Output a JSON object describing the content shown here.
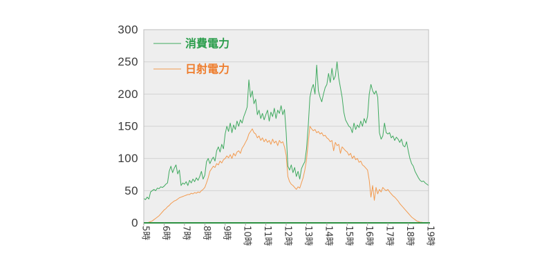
{
  "chart_data": {
    "type": "line",
    "xlim": [
      "5:00",
      "19:00"
    ],
    "ylim": [
      0,
      300
    ],
    "grid": true,
    "legend": "top-left",
    "y_ticks": [
      0,
      50,
      100,
      150,
      200,
      250,
      300
    ],
    "x_ticks": [
      {
        "at": "5:00",
        "label": "5時"
      },
      {
        "at": "6:00",
        "label": "6時"
      },
      {
        "at": "7:00",
        "label": "7時"
      },
      {
        "at": "8:00",
        "label": "8時"
      },
      {
        "at": "9:00",
        "label": "9時"
      },
      {
        "at": "10:00",
        "label": "10時"
      },
      {
        "at": "11:00",
        "label": "11時"
      },
      {
        "at": "12:00",
        "label": "12時"
      },
      {
        "at": "13:00",
        "label": "13時"
      },
      {
        "at": "14:00",
        "label": "14時"
      },
      {
        "at": "15:00",
        "label": "15時"
      },
      {
        "at": "16:00",
        "label": "16時"
      },
      {
        "at": "17:00",
        "label": "17時"
      },
      {
        "at": "18:00",
        "label": "18時"
      },
      {
        "at": "19:00",
        "label": "19時"
      }
    ],
    "x": [
      "5:00",
      "5:05",
      "5:10",
      "5:15",
      "5:20",
      "5:25",
      "5:30",
      "5:35",
      "5:40",
      "5:45",
      "5:50",
      "5:55",
      "6:00",
      "6:05",
      "6:10",
      "6:15",
      "6:20",
      "6:25",
      "6:30",
      "6:35",
      "6:40",
      "6:45",
      "6:50",
      "6:55",
      "7:00",
      "7:05",
      "7:10",
      "7:15",
      "7:20",
      "7:25",
      "7:30",
      "7:35",
      "7:40",
      "7:45",
      "7:50",
      "7:55",
      "8:00",
      "8:05",
      "8:10",
      "8:15",
      "8:20",
      "8:25",
      "8:30",
      "8:35",
      "8:40",
      "8:45",
      "8:50",
      "8:55",
      "9:00",
      "9:05",
      "9:10",
      "9:15",
      "9:20",
      "9:25",
      "9:30",
      "9:35",
      "9:40",
      "9:45",
      "9:50",
      "9:55",
      "10:00",
      "10:05",
      "10:10",
      "10:15",
      "10:20",
      "10:25",
      "10:30",
      "10:35",
      "10:40",
      "10:45",
      "10:50",
      "10:55",
      "11:00",
      "11:05",
      "11:10",
      "11:15",
      "11:20",
      "11:25",
      "11:30",
      "11:35",
      "11:40",
      "11:45",
      "11:50",
      "11:55",
      "12:00",
      "12:05",
      "12:10",
      "12:15",
      "12:20",
      "12:25",
      "12:30",
      "12:35",
      "12:40",
      "12:45",
      "12:50",
      "12:55",
      "13:00",
      "13:05",
      "13:10",
      "13:15",
      "13:20",
      "13:25",
      "13:30",
      "13:35",
      "13:40",
      "13:45",
      "13:50",
      "13:55",
      "14:00",
      "14:05",
      "14:10",
      "14:15",
      "14:20",
      "14:25",
      "14:30",
      "14:35",
      "14:40",
      "14:45",
      "14:50",
      "14:55",
      "15:00",
      "15:05",
      "15:10",
      "15:15",
      "15:20",
      "15:25",
      "15:30",
      "15:35",
      "15:40",
      "15:45",
      "15:50",
      "15:55",
      "16:00",
      "16:05",
      "16:10",
      "16:15",
      "16:20",
      "16:25",
      "16:30",
      "16:35",
      "16:40",
      "16:45",
      "16:50",
      "16:55",
      "17:00",
      "17:05",
      "17:10",
      "17:15",
      "17:20",
      "17:25",
      "17:30",
      "17:35",
      "17:40",
      "17:45",
      "17:50",
      "17:55",
      "18:00",
      "18:05",
      "18:10",
      "18:15",
      "18:20",
      "18:25",
      "18:30",
      "18:35",
      "18:40",
      "18:45",
      "18:50",
      "18:55",
      "19:00"
    ],
    "series": [
      {
        "name": "消費電力",
        "color": "#3ea95e",
        "label_color": "#2a9d4b",
        "values": [
          38,
          36,
          40,
          37,
          48,
          50,
          52,
          50,
          54,
          53,
          56,
          55,
          57,
          60,
          62,
          80,
          88,
          78,
          85,
          90,
          76,
          82,
          58,
          62,
          60,
          64,
          58,
          66,
          62,
          68,
          64,
          70,
          66,
          72,
          80,
          68,
          74,
          95,
          100,
          92,
          98,
          102,
          96,
          112,
          118,
          110,
          122,
          115,
          138,
          150,
          142,
          155,
          140,
          152,
          145,
          158,
          150,
          160,
          155,
          165,
          172,
          180,
          222,
          195,
          205,
          185,
          192,
          168,
          175,
          162,
          170,
          160,
          168,
          175,
          158,
          172,
          165,
          178,
          162,
          175,
          170,
          182,
          168,
          176,
          140,
          88,
          82,
          90,
          78,
          86,
          72,
          80,
          68,
          84,
          90,
          95,
          115,
          150,
          195,
          208,
          215,
          200,
          245,
          205,
          195,
          188,
          200,
          210,
          215,
          232,
          218,
          240,
          222,
          228,
          250,
          225,
          210,
          195,
          172,
          160,
          155,
          150,
          148,
          140,
          155,
          145,
          152,
          148,
          158,
          150,
          162,
          155,
          165,
          200,
          215,
          205,
          200,
          205,
          195,
          140,
          130,
          135,
          155,
          140,
          138,
          140,
          132,
          135,
          128,
          133,
          130,
          125,
          130,
          120,
          118,
          126,
          112,
          100,
          92,
          88,
          80,
          75,
          70,
          66,
          64,
          65,
          62,
          60,
          58
        ]
      },
      {
        "name": "日射電力",
        "color": "#f39a4e",
        "label_color": "#ee7d2d",
        "values": [
          0,
          0,
          0,
          1,
          2,
          3,
          5,
          7,
          9,
          11,
          14,
          17,
          20,
          22,
          25,
          27,
          30,
          32,
          34,
          35,
          37,
          39,
          40,
          41,
          42,
          43,
          44,
          44,
          46,
          45,
          47,
          46,
          48,
          47,
          50,
          52,
          55,
          62,
          70,
          80,
          84,
          88,
          86,
          92,
          90,
          96,
          93,
          98,
          100,
          104,
          101,
          106,
          100,
          108,
          104,
          110,
          112,
          108,
          116,
          120,
          125,
          130,
          138,
          142,
          146,
          140,
          138,
          132,
          135,
          128,
          132,
          126,
          130,
          125,
          128,
          122,
          130,
          124,
          127,
          120,
          128,
          124,
          126,
          118,
          105,
          72,
          64,
          60,
          58,
          55,
          52,
          56,
          54,
          62,
          70,
          82,
          98,
          125,
          150,
          146,
          143,
          145,
          140,
          142,
          138,
          140,
          135,
          136,
          132,
          130,
          126,
          128,
          112,
          125,
          120,
          122,
          108,
          118,
          115,
          112,
          110,
          105,
          108,
          100,
          104,
          98,
          100,
          94,
          96,
          90,
          88,
          85,
          82,
          66,
          40,
          58,
          35,
          55,
          45,
          52,
          48,
          55,
          52,
          50,
          52,
          48,
          45,
          42,
          40,
          37,
          34,
          30,
          27,
          24,
          21,
          18,
          15,
          12,
          9,
          7,
          5,
          3,
          2,
          1,
          1,
          0,
          0,
          0,
          0
        ]
      }
    ]
  },
  "colors": {
    "plot_bg": "#eeeeee",
    "grid": "#d2d2d2",
    "frame": "#bdbdbd",
    "axis": "#2a8f3f",
    "tick": "#9a9a9a"
  }
}
